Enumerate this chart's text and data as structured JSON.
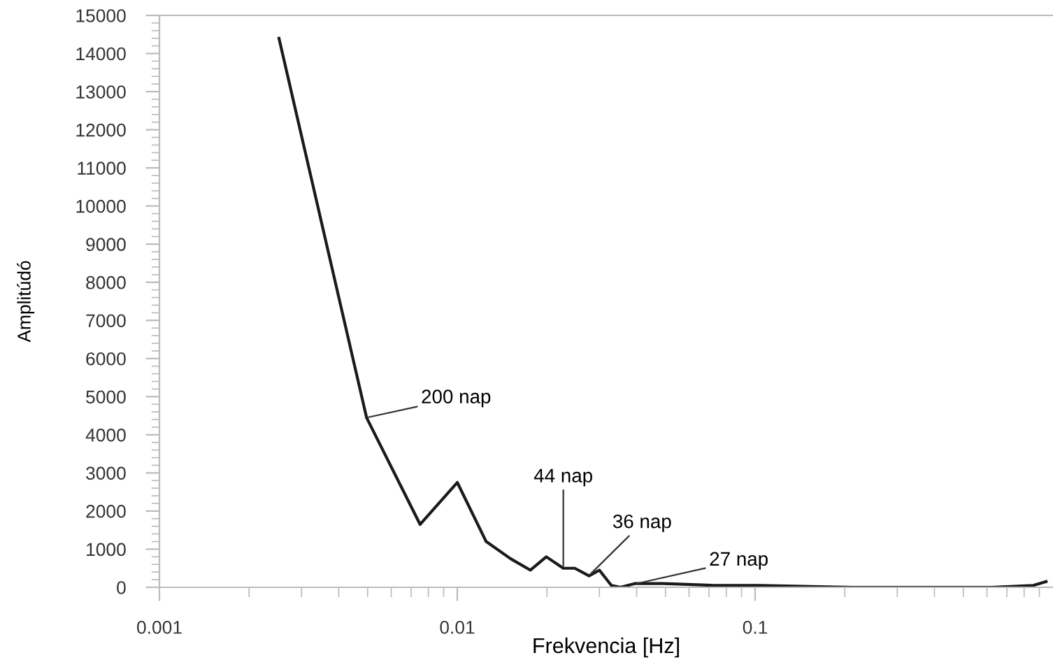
{
  "chart_data": {
    "type": "line",
    "xlabel": "Frekvencia [Hz]",
    "ylabel": "Amplitúdó",
    "log": "x",
    "x": [
      0.00252,
      0.00496,
      0.0075,
      0.01,
      0.0125,
      0.0151,
      0.0176,
      0.0199,
      0.0227,
      0.0248,
      0.0277,
      0.03,
      0.0329,
      0.0353,
      0.0396,
      0.0491,
      0.0728,
      0.104,
      0.212,
      0.621,
      0.859,
      0.948
    ],
    "series": [
      {
        "color": "#1a1a1a",
        "values": [
          14400,
          4450,
          1650,
          2750,
          1200,
          750,
          450,
          800,
          500,
          500,
          300,
          450,
          50,
          0,
          100,
          100,
          50,
          50,
          0,
          0,
          50,
          150
        ]
      }
    ],
    "xlim": [
      0.001,
      1
    ],
    "xticks": [
      0.001,
      0.01,
      0.1
    ],
    "ylim": [
      0,
      15000
    ],
    "yticks": [
      0,
      1000,
      2000,
      3000,
      4000,
      5000,
      6000,
      7000,
      8000,
      9000,
      10000,
      11000,
      12000,
      13000,
      14000,
      15000
    ],
    "grid": false,
    "legend": false,
    "marker": "none",
    "line_style": "solid",
    "annotations": [
      {
        "text": "200 nap",
        "x": 0.00496,
        "y": 4450
      },
      {
        "text": "44 nap",
        "x": 0.0227,
        "y": 510
      },
      {
        "text": "36 nap",
        "x": 0.0277,
        "y": 310
      },
      {
        "text": "27 nap",
        "x": 0.0396,
        "y": 90
      }
    ]
  }
}
